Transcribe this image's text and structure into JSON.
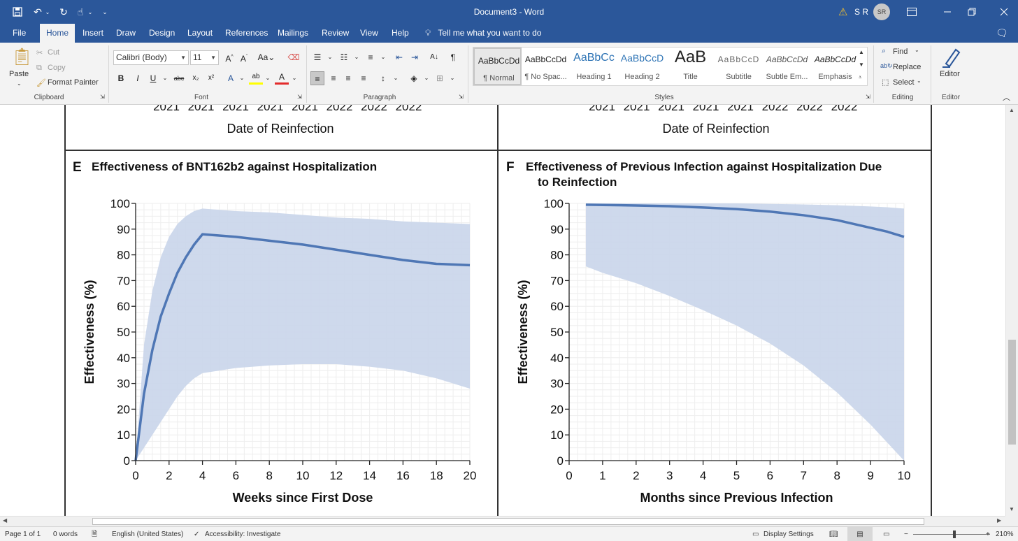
{
  "titlebar": {
    "doc_title": "Document3 - Word",
    "user_initials": "S R",
    "avatar_text": "SR"
  },
  "tabs": [
    "File",
    "Home",
    "Insert",
    "Draw",
    "Design",
    "Layout",
    "References",
    "Mailings",
    "Review",
    "View",
    "Help"
  ],
  "tell_me": "Tell me what you want to do",
  "ribbon": {
    "clipboard": {
      "paste": "Paste",
      "cut": "Cut",
      "copy": "Copy",
      "format_painter": "Format Painter",
      "label": "Clipboard"
    },
    "font": {
      "name": "Calibri (Body)",
      "size": "11",
      "label": "Font"
    },
    "paragraph": {
      "label": "Paragraph"
    },
    "styles": {
      "label": "Styles",
      "items": [
        {
          "sample": "AaBbCcDd",
          "name": "¶ Normal"
        },
        {
          "sample": "AaBbCcDd",
          "name": "¶ No Spac..."
        },
        {
          "sample": "AaBbCc",
          "name": "Heading 1"
        },
        {
          "sample": "AaBbCcD",
          "name": "Heading 2"
        },
        {
          "sample": "AaB",
          "name": "Title"
        },
        {
          "sample": "AaBbCcD",
          "name": "Subtitle"
        },
        {
          "sample": "AaBbCcDd",
          "name": "Subtle Em..."
        },
        {
          "sample": "AaBbCcDd",
          "name": "Emphasis"
        }
      ]
    },
    "editing": {
      "find": "Find",
      "replace": "Replace",
      "select": "Select",
      "label": "Editing"
    },
    "editor": {
      "button": "Editor",
      "label": "Editor"
    }
  },
  "document": {
    "top_panels": {
      "left_years": [
        "2021",
        "2021",
        "2021",
        "2021",
        "2021",
        "2022",
        "2022",
        "2022"
      ],
      "right_years": [
        "2021",
        "2021",
        "2021",
        "2021",
        "2021",
        "2022",
        "2022",
        "2022"
      ],
      "left_xlabel": "Date of Reinfection",
      "right_xlabel": "Date of Reinfection"
    }
  },
  "chart_data": [
    {
      "panel_letter": "E",
      "type": "line",
      "title": "Effectiveness of BNT162b2 against Hospitalization",
      "xlabel": "Weeks since First Dose",
      "ylabel": "Effectiveness (%)",
      "xlim": [
        0,
        20
      ],
      "ylim": [
        0,
        100
      ],
      "xticks": [
        0,
        2,
        4,
        6,
        8,
        10,
        12,
        14,
        16,
        18,
        20
      ],
      "yticks": [
        0,
        10,
        20,
        30,
        40,
        50,
        60,
        70,
        80,
        90,
        100
      ],
      "grid": true,
      "series": [
        {
          "x": [
            0,
            0.5,
            1,
            1.5,
            2,
            2.5,
            3,
            3.5,
            4,
            6,
            8,
            10,
            12,
            14,
            16,
            18,
            20
          ],
          "y": [
            0,
            26,
            43,
            56,
            65,
            73,
            79,
            84,
            88,
            87,
            85.5,
            84,
            82,
            80,
            78,
            76.5,
            76
          ]
        }
      ],
      "band": {
        "x": [
          0,
          0.5,
          1,
          1.5,
          2,
          2.5,
          3,
          3.5,
          4,
          6,
          8,
          10,
          12,
          14,
          16,
          18,
          20
        ],
        "upper": [
          0,
          45,
          66,
          79,
          87,
          92,
          95,
          97,
          98,
          97,
          96.5,
          95.5,
          94.5,
          94,
          93,
          92.5,
          92
        ],
        "lower": [
          0,
          5,
          10,
          15,
          20,
          25,
          29,
          32,
          34,
          36,
          37,
          37.5,
          37.5,
          36.5,
          35,
          32,
          28
        ]
      },
      "colors": {
        "line": "#4f77b5",
        "band": "#c9d5ea"
      }
    },
    {
      "panel_letter": "F",
      "type": "line",
      "title": "Effectiveness of Previous Infection against Hospitalization Due to Reinfection",
      "xlabel": "Months since Previous Infection",
      "ylabel": "Effectiveness (%)",
      "xlim": [
        0,
        10
      ],
      "ylim": [
        0,
        100
      ],
      "xticks": [
        0,
        1,
        2,
        3,
        4,
        5,
        6,
        7,
        8,
        9,
        10
      ],
      "yticks": [
        0,
        10,
        20,
        30,
        40,
        50,
        60,
        70,
        80,
        90,
        100
      ],
      "grid": true,
      "series": [
        {
          "x": [
            0.5,
            1,
            2,
            3,
            4,
            5,
            6,
            7,
            8,
            9,
            9.5,
            10
          ],
          "y": [
            99.5,
            99.4,
            99.2,
            98.9,
            98.4,
            97.8,
            96.8,
            95.4,
            93.5,
            90.5,
            89,
            87
          ]
        }
      ],
      "band": {
        "x": [
          0.5,
          1,
          2,
          3,
          4,
          5,
          6,
          7,
          8,
          9,
          9.5,
          10
        ],
        "upper": [
          100,
          100,
          100,
          100,
          100,
          100,
          99.8,
          99.6,
          99.3,
          98.8,
          98.5,
          98
        ],
        "lower": [
          75.5,
          73,
          69,
          64,
          58.5,
          52.5,
          45.5,
          37,
          26.5,
          14,
          7,
          0
        ]
      },
      "colors": {
        "line": "#4f77b5",
        "band": "#c9d5ea"
      }
    }
  ],
  "statusbar": {
    "page": "Page 1 of 1",
    "words": "0 words",
    "language": "English (United States)",
    "accessibility": "Accessibility: Investigate",
    "display_settings": "Display Settings",
    "zoom": "210%"
  }
}
